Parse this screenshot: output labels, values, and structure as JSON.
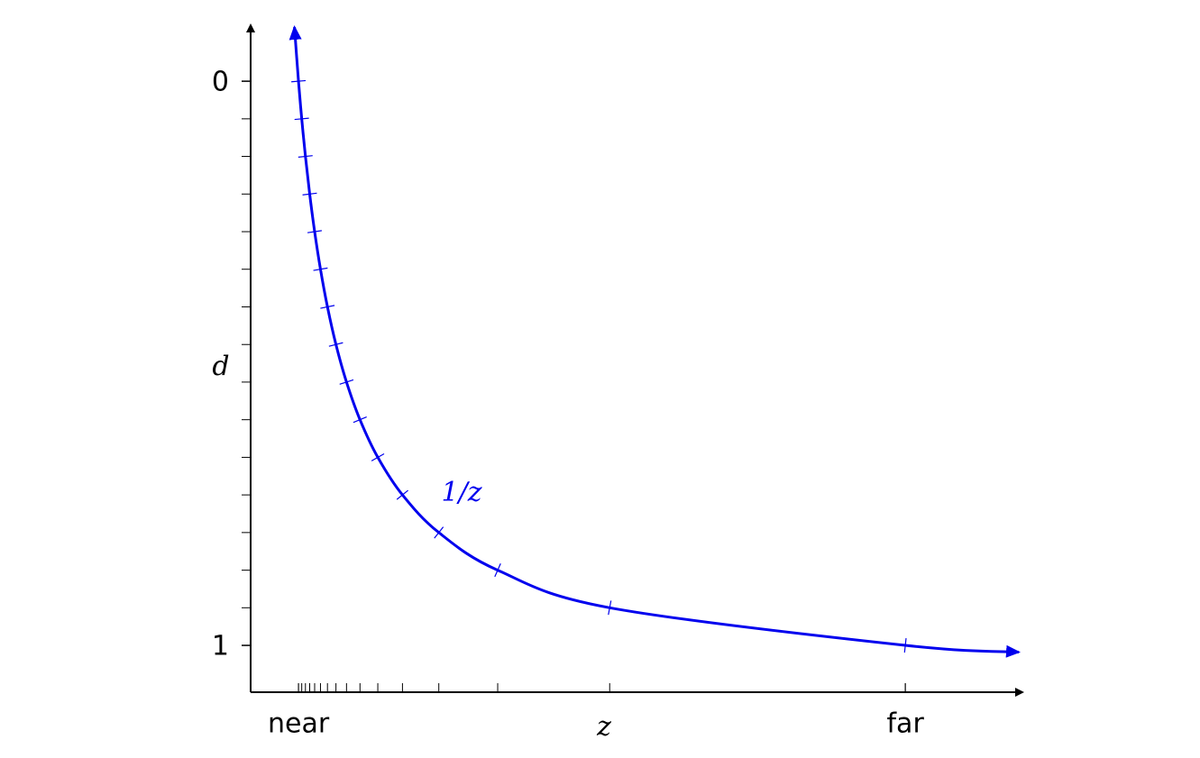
{
  "chart_data": {
    "type": "line",
    "x_label": "z",
    "y_label": "d",
    "xlim": [
      0.03,
      15.6
    ],
    "ylim": [
      -0.096,
      1.083
    ],
    "y_inverted": true,
    "xticks": [
      {
        "value": 1,
        "label": "near"
      },
      {
        "value": 13.3,
        "label": "far"
      }
    ],
    "yticks": [
      0,
      1
    ],
    "xminor": [
      1,
      1.0657,
      1.1407,
      1.2269,
      1.3273,
      1.4457,
      1.5871,
      1.7593,
      1.9733,
      2.2466,
      2.6078,
      3.1075,
      3.844,
      5.0378,
      7.3077,
      13.3
    ],
    "yminor": [
      0,
      0.0667,
      0.1333,
      0.2,
      0.2667,
      0.3333,
      0.4,
      0.4667,
      0.5333,
      0.6,
      0.6667,
      0.7333,
      0.8,
      0.8667,
      0.9333,
      1
    ],
    "series": [
      {
        "name": "1/z",
        "color": "#0000ee",
        "x": [
          0.918,
          1,
          1.0657,
          1.1407,
          1.2269,
          1.3273,
          1.4457,
          1.5871,
          1.7593,
          1.9733,
          2.2466,
          2.6078,
          3.1075,
          3.844,
          5.0378,
          7.3077,
          13.3,
          15.6
        ],
        "values": [
          -0.096,
          0,
          0.0667,
          0.1333,
          0.2,
          0.2667,
          0.3333,
          0.4,
          0.4667,
          0.5333,
          0.6,
          0.6667,
          0.7333,
          0.8,
          0.8667,
          0.9333,
          1,
          1.012
        ]
      }
    ]
  }
}
